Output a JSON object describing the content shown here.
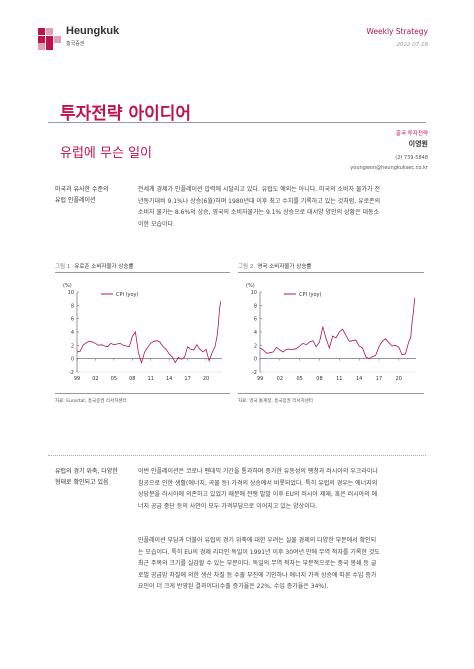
{
  "header": {
    "logo_name": "Heungkuk",
    "logo_sub": "흥국증권",
    "report_type": "Weekly Strategy",
    "date": "2022.07.18"
  },
  "title": "투자전략 아이디어",
  "subtitle": "유럽에 무슨 일이",
  "author": {
    "role": "흥국 투자전략",
    "name": "이영원",
    "phone": "(2) 739-5848",
    "email": "youngwon@heungkuksec.co.kr"
  },
  "section1": {
    "side_lines": [
      "미국과 유사한 수준의",
      "유럽 인플레이션"
    ],
    "para_lines": [
      "전세계 경제가 인플레이션 압력에 시달리고 있다. 유럽도 예외는 아니다. 미국의 소비자 물가가 전",
      "년동기대비 9.1%나 상승(6월)하며 1980년대 이후 최고 수치를 기록하고 있는 것처럼, 유로존의",
      "소비자 물가는 8.6%의 상승, 영국의 소비자물가는 9.1% 상승으로 대서양 양안의 상황은 대동소",
      "이한 모습이다."
    ]
  },
  "figures": [
    {
      "num": "그림 1",
      "title": "유로존 소비자물가 상승률",
      "source": "자료: Eurostat, 흥국증권 리서치센터"
    },
    {
      "num": "그림 2",
      "title": "영국 소비자물가 상승률",
      "source": "자료: 영국 통계청, 흥국증권 리서치센터"
    }
  ],
  "chart_data": [
    {
      "type": "line",
      "ylabel": "(%)",
      "ylim": [
        -2,
        10
      ],
      "yticks": [
        "10",
        "8",
        "6",
        "4",
        "2",
        "0",
        "-2"
      ],
      "xticks": [
        "99",
        "02",
        "05",
        "08",
        "11",
        "14",
        "17",
        "20"
      ],
      "series": [
        {
          "name": "CPI (yoy)",
          "x": [
            1999,
            1999.5,
            2000,
            2000.5,
            2001,
            2001.5,
            2002,
            2002.5,
            2003,
            2003.5,
            2004,
            2004.5,
            2005,
            2005.5,
            2006,
            2006.5,
            2007,
            2007.5,
            2008,
            2008.5,
            2009,
            2009.5,
            2010,
            2010.5,
            2011,
            2011.5,
            2012,
            2012.5,
            2013,
            2013.5,
            2014,
            2014.5,
            2015,
            2015.5,
            2016,
            2016.5,
            2017,
            2017.5,
            2018,
            2018.5,
            2019,
            2019.5,
            2020,
            2020.5,
            2021,
            2021.5,
            2021.8,
            2022,
            2022.2,
            2022.4
          ],
          "values": [
            1.0,
            1.1,
            2.0,
            2.4,
            2.6,
            2.5,
            2.3,
            2.0,
            2.1,
            1.9,
            1.8,
            2.3,
            2.1,
            2.2,
            2.3,
            2.0,
            1.9,
            1.8,
            3.3,
            4.0,
            0.9,
            -0.6,
            1.0,
            1.7,
            2.3,
            2.6,
            2.7,
            2.5,
            1.8,
            1.4,
            0.7,
            0.3,
            -0.6,
            0.2,
            -0.1,
            0.2,
            1.8,
            1.4,
            1.3,
            2.1,
            1.4,
            1.0,
            1.4,
            -0.3,
            0.9,
            1.9,
            3.4,
            5.1,
            7.4,
            8.6
          ]
        }
      ]
    },
    {
      "type": "line",
      "ylabel": "(%)",
      "ylim": [
        -2,
        10
      ],
      "yticks": [
        "10",
        "8",
        "6",
        "4",
        "2",
        "0",
        "-2"
      ],
      "xticks": [
        "99",
        "02",
        "05",
        "08",
        "11",
        "14",
        "17",
        "20"
      ],
      "series": [
        {
          "name": "CPI (yoy)",
          "x": [
            1999,
            1999.5,
            2000,
            2000.5,
            2001,
            2001.5,
            2002,
            2002.5,
            2003,
            2003.5,
            2004,
            2004.5,
            2005,
            2005.5,
            2006,
            2006.5,
            2007,
            2007.5,
            2008,
            2008.5,
            2009,
            2009.5,
            2010,
            2010.5,
            2011,
            2011.5,
            2012,
            2012.5,
            2013,
            2013.5,
            2014,
            2014.5,
            2015,
            2015.5,
            2016,
            2016.5,
            2017,
            2017.5,
            2018,
            2018.5,
            2019,
            2019.5,
            2020,
            2020.5,
            2021,
            2021.5,
            2021.8,
            2022,
            2022.2,
            2022.4
          ],
          "values": [
            1.6,
            1.3,
            0.8,
            0.9,
            1.0,
            1.7,
            1.3,
            1.0,
            1.4,
            1.4,
            1.4,
            1.5,
            1.9,
            2.3,
            2.1,
            2.5,
            2.7,
            1.8,
            2.5,
            4.8,
            3.0,
            1.6,
            3.4,
            3.1,
            4.0,
            4.4,
            3.5,
            2.6,
            2.7,
            2.8,
            1.9,
            1.6,
            0.3,
            0.0,
            0.3,
            0.5,
            1.8,
            2.6,
            3.0,
            2.4,
            1.9,
            2.0,
            1.7,
            0.6,
            0.7,
            2.5,
            3.1,
            5.4,
            7.0,
            9.1
          ]
        }
      ]
    }
  ],
  "section2": {
    "side_lines": [
      "유럽의 경기 위축, 다양한",
      "형태로 확인되고 있음"
    ],
    "para1_lines": [
      "이번 인플레이션은 코로나 펜데믹 기간을 통과하며 증가한 유동성의 팽창과 러시아의 우크라이나",
      "침공으로 인한 생활(에너지, 곡물 등) 가격의 상승에서 비롯되었다. 특히 유럽의 경우는 에너지의",
      "상당분을 러시아에 의존하고 있었기 때문에 전쟁 발발 이후 EU의 러시아 제재, 혹은 러시아의 에",
      "너지 공급 중단 등의 사안이 모두 가격부담으로 이어지고 있는 양상이다."
    ],
    "para2_lines": [
      "인플레이션 부담과 더불어 유럽의 경기 위축에 대한 우려는 실물 경제의 다양한 부문에서 확인되",
      "는 모습이다. 특히 EU의 경제 리더인 독일이 1991년 이후 30여년 만에 무역 적자를 기록한 것도",
      "최근 주목의 크기를 실감할 수 있는 부분이다. 독일의 무역 적자는 부분적으로는 중국 봉쇄 등 글",
      "로벌 공급망 차질에 의한 생산 차질 등 수출 부진에 기인하나 에너지 가격 상승에 따른 수입 증가",
      "요인이 더 크게 반영된 결과이다(수출 증가율은 22%, 수입 증가율은 34%)."
    ]
  },
  "colors": {
    "accent": "#c0134a",
    "line": "#b0154e"
  }
}
